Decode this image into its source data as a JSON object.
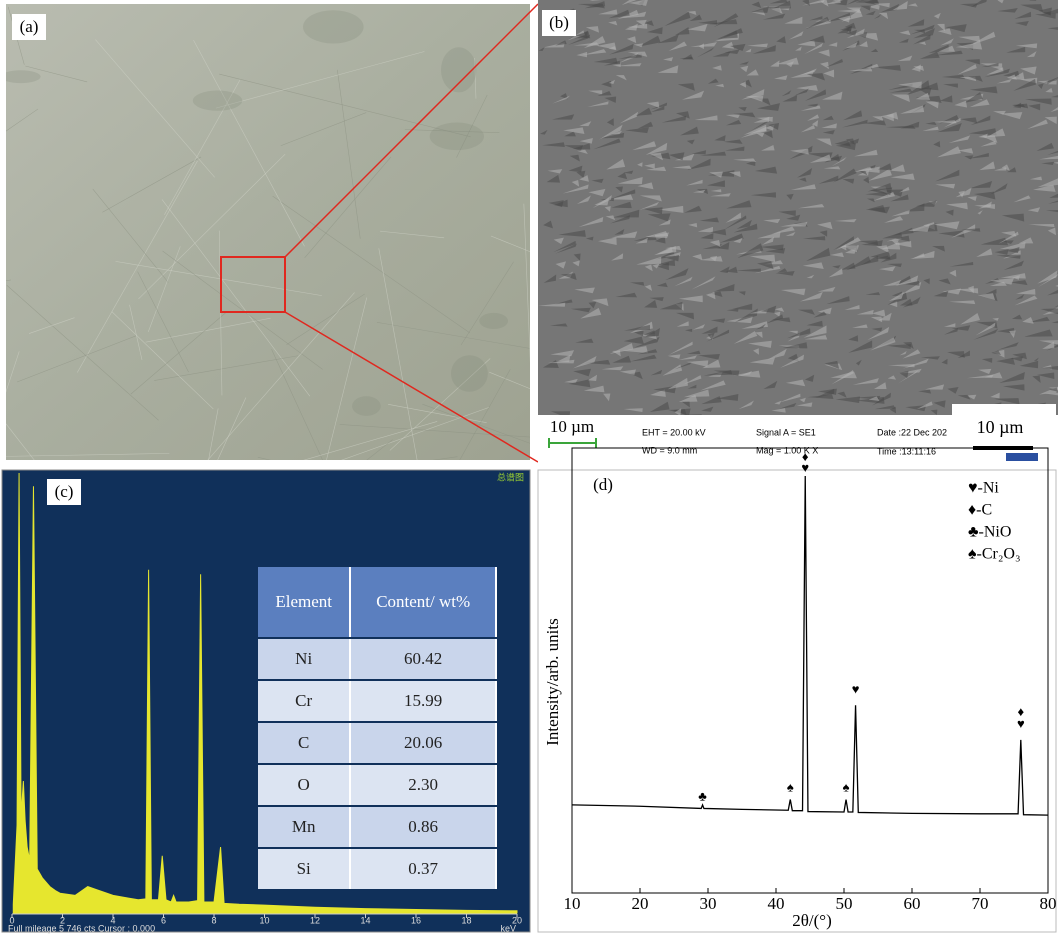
{
  "panels": {
    "a": {
      "label": "(a)"
    },
    "b": {
      "label": "(b)",
      "scale_bar": "10 µm",
      "info": [
        "EHT = 20.00 kV",
        "WD =  9.0 mm",
        "Signal A = SE1",
        "Mag =   1.00 K X",
        "Date :22 Dec 202",
        "Time :13:11:16"
      ],
      "scale_bar_2": "10 µm"
    }
  },
  "table": {
    "header": [
      "Element",
      "Content/ wt%"
    ],
    "rows": [
      [
        "Ni",
        "60.42"
      ],
      [
        "Cr",
        "15.99"
      ],
      [
        "C",
        "20.06"
      ],
      [
        "O",
        "2.30"
      ],
      [
        "Mn",
        "0.86"
      ],
      [
        "Si",
        "0.37"
      ]
    ]
  },
  "chart_data": [
    {
      "type": "area",
      "label": "(c)",
      "corner_text": "总谱图",
      "xlabel": "keV",
      "footer": "Full mileage 5 746 cts Cursor : 0.000",
      "color": "#e6e62e",
      "xlim": [
        0,
        20
      ],
      "ylim": [
        0,
        100
      ],
      "xticks": [
        0,
        2,
        4,
        6,
        8,
        10,
        12,
        14,
        16,
        18,
        20
      ],
      "x": [
        0.05,
        0.2,
        0.28,
        0.36,
        0.45,
        0.52,
        0.6,
        0.7,
        0.85,
        1.0,
        1.2,
        1.5,
        1.74,
        1.9,
        2.5,
        3,
        3.5,
        4,
        4.5,
        5,
        5.3,
        5.41,
        5.52,
        5.8,
        5.95,
        6.1,
        6.3,
        6.4,
        6.5,
        7.0,
        7.35,
        7.47,
        7.6,
        8.0,
        8.26,
        8.4,
        9,
        10,
        12,
        14,
        16,
        18,
        20
      ],
      "values": [
        2,
        20,
        100,
        22,
        30,
        21,
        15,
        12,
        97,
        10,
        8,
        6,
        5,
        4.5,
        4,
        6,
        5,
        4,
        3.5,
        3,
        3.2,
        78,
        3,
        3,
        13,
        3,
        2.5,
        4,
        2.5,
        2.5,
        2.8,
        77,
        2.5,
        2.5,
        15,
        2.2,
        2,
        1.8,
        1.3,
        1,
        0.8,
        0.6,
        0.5
      ]
    },
    {
      "type": "line",
      "label": "(d)",
      "xlabel": "2θ/(°)",
      "ylabel": "Intensity/arb. units",
      "color": "#000000",
      "xlim": [
        10,
        80
      ],
      "ylim": [
        0,
        100
      ],
      "xticks": [
        10,
        20,
        30,
        40,
        50,
        60,
        70,
        80
      ],
      "x": [
        10,
        20,
        29,
        29.2,
        29.4,
        35,
        41.8,
        42.1,
        42.4,
        43.9,
        44.3,
        44.7,
        50.0,
        50.3,
        50.6,
        51.3,
        51.7,
        52.1,
        60,
        70,
        75.6,
        76.0,
        76.4,
        80
      ],
      "values": [
        19.8,
        19.5,
        19,
        19.8,
        19,
        18.8,
        18.6,
        21,
        18.5,
        18.5,
        93.7,
        18.3,
        18.2,
        21,
        18.2,
        18.2,
        42.2,
        18.1,
        17.9,
        17.8,
        17.8,
        34.4,
        17.6,
        17.5
      ],
      "annotations": [
        {
          "text": "♦",
          "x": 44.3,
          "y": 97.8
        },
        {
          "text": "♥",
          "x": 44.3,
          "y": 95.3
        },
        {
          "text": "♥",
          "x": 51.7,
          "y": 45.5
        },
        {
          "text": "♦",
          "x": 76.0,
          "y": 40.5
        },
        {
          "text": "♥",
          "x": 76.0,
          "y": 37.8
        },
        {
          "text": "♣",
          "x": 29.2,
          "y": 21.5
        },
        {
          "text": "♠",
          "x": 42.1,
          "y": 23.5
        },
        {
          "text": "♠",
          "x": 50.3,
          "y": 23.5
        }
      ],
      "legend": [
        "♥-Ni",
        "♦-C",
        "♣-NiO",
        "♠-Cr₂O₃"
      ]
    }
  ]
}
